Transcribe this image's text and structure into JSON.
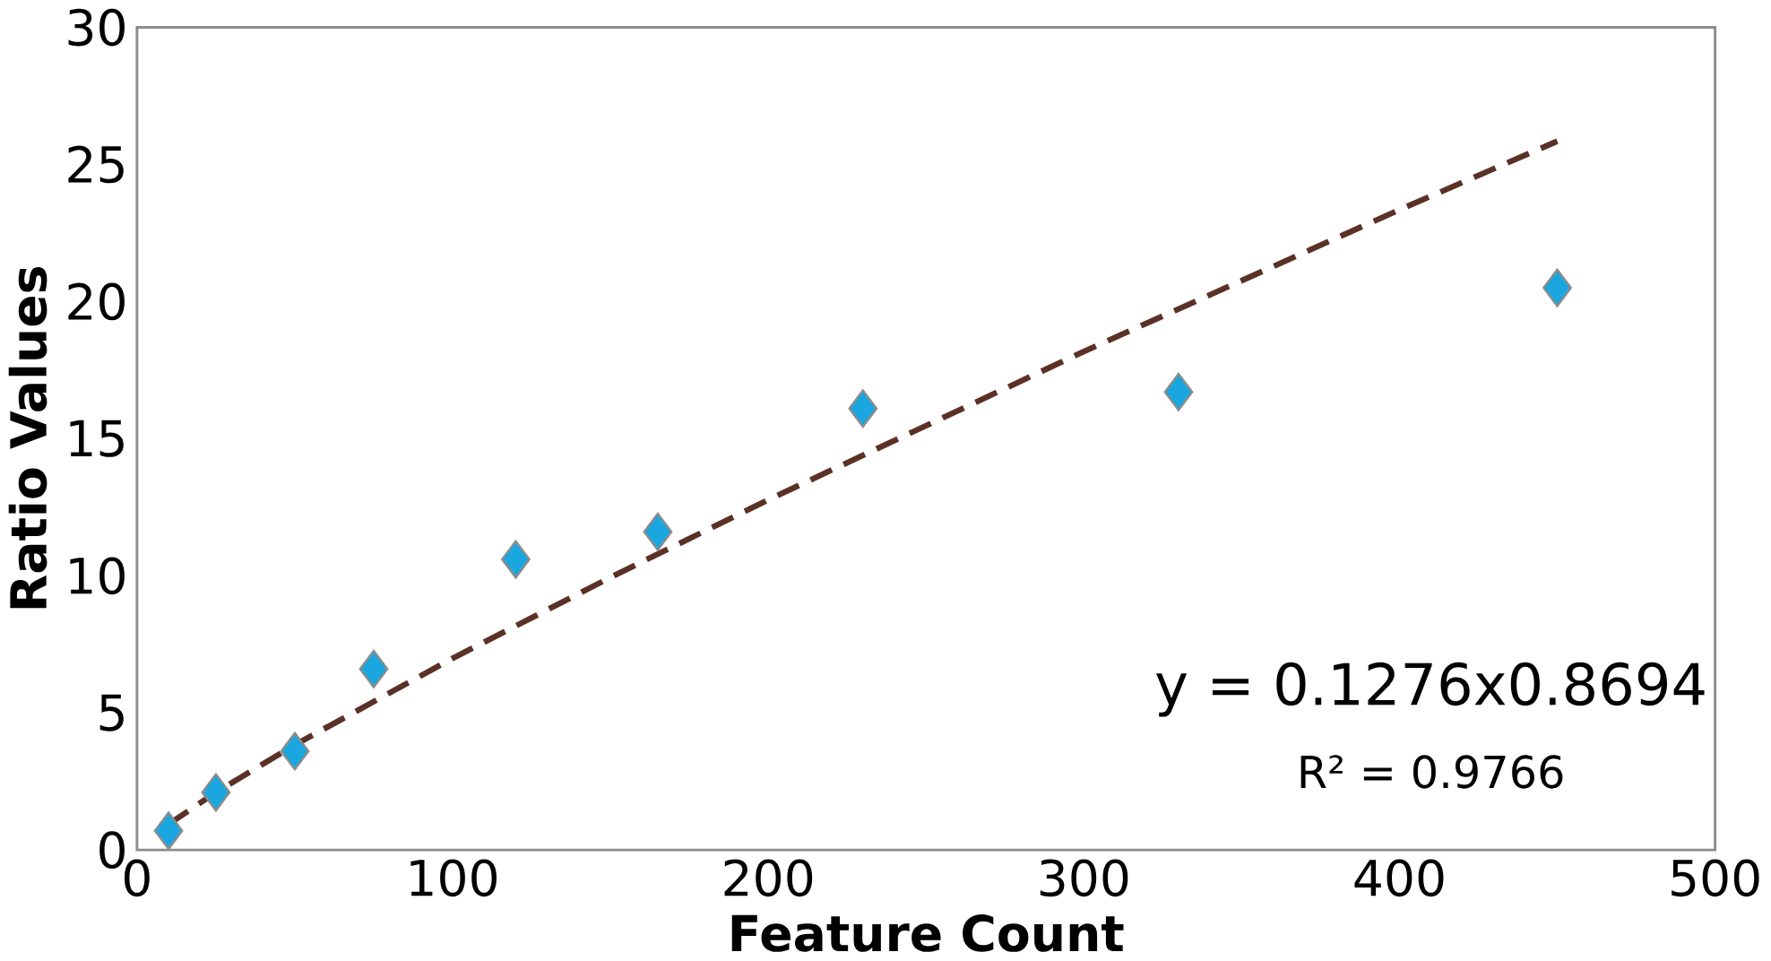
{
  "chart_data": {
    "type": "scatter",
    "xlabel": "Feature Count",
    "ylabel": "Ratio Values",
    "xlim": [
      0,
      500
    ],
    "ylim": [
      0,
      30
    ],
    "xticks": [
      0,
      100,
      200,
      300,
      400,
      500
    ],
    "yticks": [
      0,
      5,
      10,
      15,
      20,
      25,
      30
    ],
    "marker": "diamond",
    "series": [
      {
        "color": "#1aa7e0",
        "x": [
          10,
          25,
          50,
          75,
          120,
          165,
          230,
          330,
          450
        ],
        "values": [
          0.7,
          2.1,
          3.6,
          6.6,
          10.6,
          11.6,
          16.1,
          16.7,
          20.5
        ]
      },
      {
        "type": "line",
        "color": "#5b3126",
        "line_style": "dashed",
        "marker": "none",
        "x": [
          10,
          25,
          50,
          100,
          150,
          200,
          300,
          400,
          450
        ],
        "values": [
          0.94,
          2.1,
          3.83,
          6.99,
          9.94,
          12.77,
          18.18,
          23.35,
          25.85
        ]
      }
    ],
    "annotations": [
      "y = 0.1276x0.8694",
      "R² = 0.9766"
    ]
  }
}
